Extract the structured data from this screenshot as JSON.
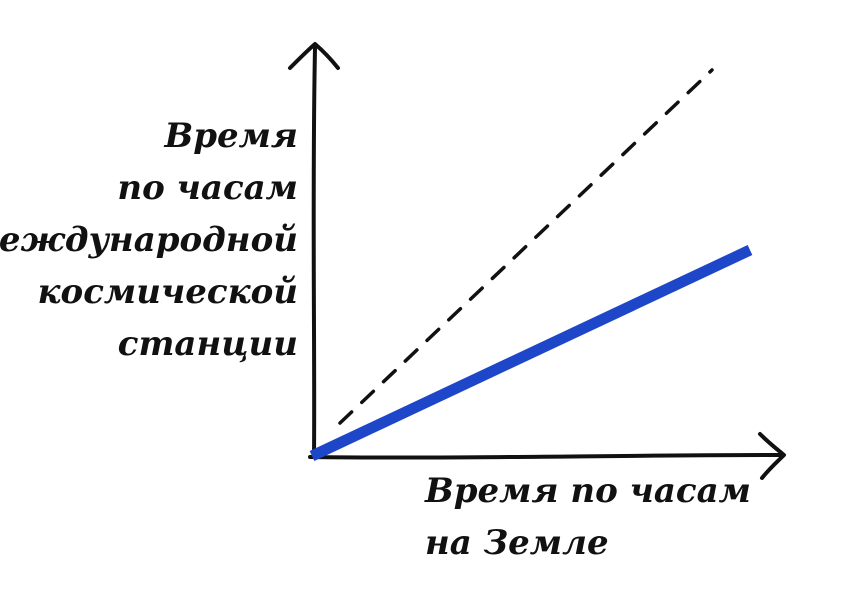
{
  "diagram": {
    "y_axis_label_lines": [
      "Время",
      "по часам",
      "Международной",
      "космической",
      "станции"
    ],
    "x_axis_label_lines": [
      "Время по часам",
      "на Земле"
    ],
    "colors": {
      "axis": "#111111",
      "reference_line": "#111111",
      "station_line": "#1e46c8"
    },
    "series": [
      {
        "style": "dashed",
        "slope": 1.0
      },
      {
        "style": "solid",
        "slope": 0.48
      }
    ]
  }
}
